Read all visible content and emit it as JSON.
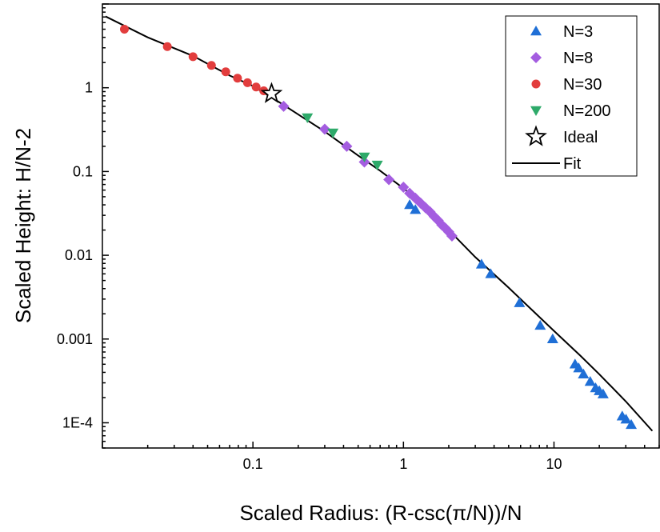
{
  "chart_data": {
    "type": "scatter",
    "xlabel": "Scaled Radius: (R-csc(π/N))/N",
    "ylabel": "Scaled Height: H/N-2",
    "xscale": "log",
    "yscale": "log",
    "xlim": [
      0.01,
      50
    ],
    "ylim": [
      5e-05,
      10
    ],
    "x_ticks": [
      {
        "value": 0.1,
        "label": "0.1"
      },
      {
        "value": 1,
        "label": "1"
      },
      {
        "value": 10,
        "label": "10"
      }
    ],
    "y_ticks": [
      {
        "value": 0.0001,
        "label": "1E-4"
      },
      {
        "value": 0.001,
        "label": "0.001"
      },
      {
        "value": 0.01,
        "label": "0.01"
      },
      {
        "value": 0.1,
        "label": "0.1"
      },
      {
        "value": 1,
        "label": "1"
      }
    ],
    "grid": false,
    "legend_position": "top-right",
    "series": [
      {
        "name": "N=3",
        "marker": "triangle-up",
        "color": "#1f6fd6",
        "x": [
          1.1,
          1.2,
          3.3,
          3.8,
          5.9,
          8.1,
          9.8,
          13.8,
          14.6,
          15.7,
          17.4,
          18.9,
          20.0,
          21.2,
          28.4,
          30.1,
          32.6
        ],
        "y": [
          0.04,
          0.035,
          0.0078,
          0.006,
          0.0027,
          0.00145,
          0.001,
          0.0005,
          0.00045,
          0.00038,
          0.00031,
          0.00026,
          0.00024,
          0.00022,
          0.00012,
          0.00011,
          9.5e-05
        ]
      },
      {
        "name": "N=8",
        "marker": "diamond",
        "color": "#a45de0",
        "x": [
          0.16,
          0.3,
          0.42,
          0.55,
          0.8,
          1.0,
          1.1,
          1.2,
          1.3,
          1.4,
          1.5,
          1.6,
          1.7,
          1.8,
          1.9,
          2.0,
          2.1
        ],
        "y": [
          0.6,
          0.32,
          0.2,
          0.13,
          0.08,
          0.065,
          0.055,
          0.048,
          0.042,
          0.037,
          0.033,
          0.029,
          0.026,
          0.023,
          0.021,
          0.019,
          0.017
        ]
      },
      {
        "name": "N=30",
        "marker": "circle",
        "color": "#e23d3d",
        "x": [
          0.014,
          0.027,
          0.04,
          0.053,
          0.066,
          0.079,
          0.092,
          0.105,
          0.118
        ],
        "y": [
          5.0,
          3.1,
          2.35,
          1.85,
          1.55,
          1.3,
          1.15,
          1.02,
          0.92
        ]
      },
      {
        "name": "N=200",
        "marker": "triangle-down",
        "color": "#2eaa6a",
        "x": [
          0.23,
          0.34,
          0.55,
          0.67
        ],
        "y": [
          0.44,
          0.29,
          0.15,
          0.12
        ]
      },
      {
        "name": "Ideal",
        "marker": "star",
        "color": "#000000",
        "x": [
          0.133
        ],
        "y": [
          0.85
        ]
      }
    ],
    "fit": {
      "name": "Fit",
      "color": "#000000",
      "x": [
        0.0105,
        0.02,
        0.04,
        0.07,
        0.1,
        0.15,
        0.2,
        0.3,
        0.5,
        0.7,
        1,
        1.5,
        2,
        3,
        5,
        7,
        10,
        15,
        20,
        30,
        45
      ],
      "y": [
        7.1,
        4.0,
        2.4,
        1.4,
        1.05,
        0.67,
        0.48,
        0.3,
        0.155,
        0.102,
        0.063,
        0.034,
        0.02,
        0.0095,
        0.0041,
        0.0023,
        0.00125,
        0.00063,
        0.00038,
        0.00018,
        8e-05
      ]
    }
  }
}
